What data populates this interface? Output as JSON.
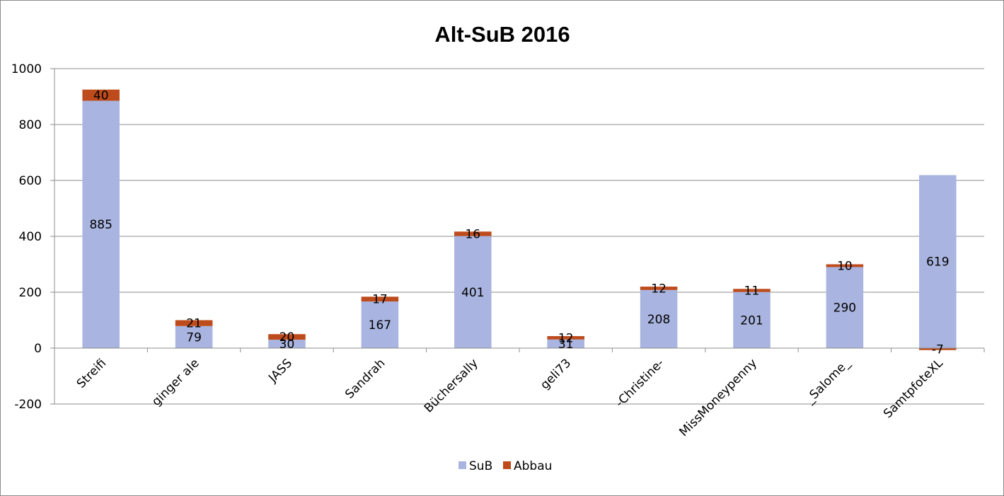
{
  "chart_data": {
    "type": "bar",
    "stacked": true,
    "title": "Alt-SuB 2016",
    "xlabel": "",
    "ylabel": "",
    "ylim": [
      -200,
      1000
    ],
    "yticks": [
      "1000",
      "800",
      "600",
      "400",
      "200",
      "0",
      "-200"
    ],
    "grid": true,
    "legend_position": "bottom",
    "categories": [
      "Streifi",
      "ginger ale",
      "JASS",
      "Sandrah",
      "Büchersally",
      "geli73",
      "-Christine-",
      "MissMoneypenny",
      "_Salome_",
      "SamtpfoteXL"
    ],
    "series": [
      {
        "name": "SuB",
        "color": "#a9b5e0",
        "values": [
          885,
          79,
          30,
          167,
          401,
          31,
          208,
          201,
          290,
          619
        ]
      },
      {
        "name": "Abbau",
        "color": "#be4b1b",
        "values": [
          40,
          21,
          20,
          17,
          16,
          12,
          12,
          11,
          10,
          -7
        ]
      }
    ]
  }
}
